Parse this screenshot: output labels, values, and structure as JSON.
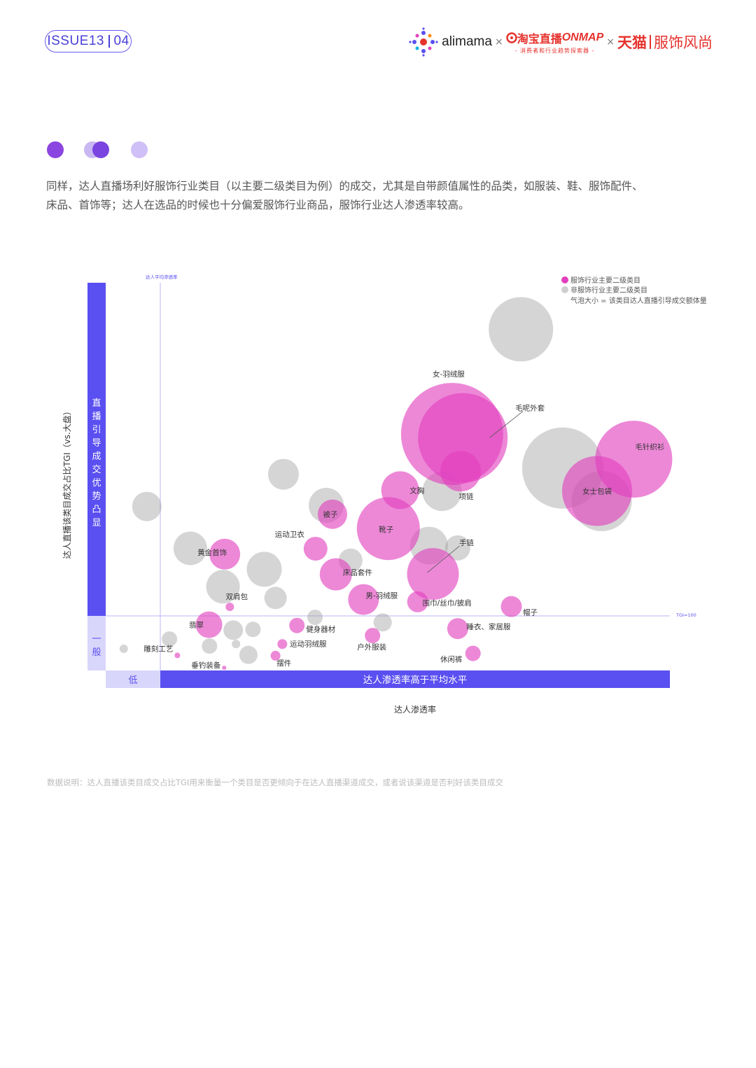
{
  "header": {
    "issue": "ISSUE13",
    "page": "04",
    "brands": {
      "alimama": "alimama",
      "times": "×",
      "taobao_live": "淘宝直播",
      "onmap": "ONMAP",
      "onmap_sub": "- 消费者和行业趋势探索器 -",
      "tmall": "天猫",
      "fashion": "服饰风尚"
    }
  },
  "intro": {
    "line1": "同样，达人直播场利好服饰行业类目（以主要二级类目为例）的成交，尤其是自带颜值属性的品类，如服装、鞋、服饰配件、",
    "line2": "床品、首饰等；达人在选品的时候也十分偏爱服饰行业商品，服饰行业达人渗透率较高。"
  },
  "chart_data": {
    "type": "scatter",
    "subtype": "bubble",
    "xlabel": "达人渗透率",
    "ylabel": "达人直播该类目成交占比TGI（vs.大盘）",
    "x_low_label": "低",
    "x_high_label": "达人渗透率高于平均水平",
    "y_high_label": "直播引导成交优势凸显",
    "y_low_label": "一般",
    "avg_line_label": "达人平均渗透率",
    "tgi_line_label": "TGI=100",
    "xlim": [
      0,
      100
    ],
    "ylim": [
      0,
      100
    ],
    "avg_x": 10.4,
    "tgi_y": 15.3,
    "legend": {
      "fashion": "服饰行业主要二级类目",
      "other": "非服饰行业主要二级类目",
      "size_note": "气泡大小 = 该类目达人直播引导成交额体量",
      "placement": "top-right"
    },
    "colors": {
      "fashion": "#e23fbe",
      "other": "#9a9a9a",
      "axis": "#5a4ff0",
      "axis_light": "#d9d6fb"
    },
    "points": [
      {
        "name": "",
        "group": "other",
        "x": 73.6,
        "y": 88.0,
        "size": 46
      },
      {
        "name": "",
        "group": "other",
        "x": 81.0,
        "y": 52.2,
        "size": 58
      },
      {
        "name": "",
        "group": "other",
        "x": 87.9,
        "y": 43.7,
        "size": 43
      },
      {
        "name": "",
        "group": "other",
        "x": 59.6,
        "y": 46.2,
        "size": 28
      },
      {
        "name": "",
        "group": "other",
        "x": 39.1,
        "y": 42.6,
        "size": 25
      },
      {
        "name": "",
        "group": "other",
        "x": 31.5,
        "y": 50.6,
        "size": 22
      },
      {
        "name": "",
        "group": "other",
        "x": 7.3,
        "y": 42.3,
        "size": 21
      },
      {
        "name": "",
        "group": "other",
        "x": 20.8,
        "y": 21.6,
        "size": 24
      },
      {
        "name": "",
        "group": "other",
        "x": 15.0,
        "y": 31.5,
        "size": 24
      },
      {
        "name": "",
        "group": "other",
        "x": 28.1,
        "y": 26.1,
        "size": 25
      },
      {
        "name": "",
        "group": "other",
        "x": 57.3,
        "y": 32.2,
        "size": 27
      },
      {
        "name": "",
        "group": "other",
        "x": 43.4,
        "y": 28.4,
        "size": 17
      },
      {
        "name": "",
        "group": "other",
        "x": 62.4,
        "y": 31.6,
        "size": 18
      },
      {
        "name": "",
        "group": "other",
        "x": 30.1,
        "y": 18.7,
        "size": 16
      },
      {
        "name": "",
        "group": "other",
        "x": 37.1,
        "y": 13.7,
        "size": 11
      },
      {
        "name": "",
        "group": "other",
        "x": 49.1,
        "y": 12.4,
        "size": 13
      },
      {
        "name": "",
        "group": "other",
        "x": 26.1,
        "y": 10.6,
        "size": 11
      },
      {
        "name": "",
        "group": "other",
        "x": 22.6,
        "y": 10.4,
        "size": 14
      },
      {
        "name": "",
        "group": "other",
        "x": 11.3,
        "y": 8.1,
        "size": 11
      },
      {
        "name": "",
        "group": "other",
        "x": 18.4,
        "y": 6.3,
        "size": 11
      },
      {
        "name": "",
        "group": "other",
        "x": 25.3,
        "y": 4.0,
        "size": 13
      },
      {
        "name": "",
        "group": "other",
        "x": 23.1,
        "y": 6.8,
        "size": 6
      },
      {
        "name": "",
        "group": "other",
        "x": 3.2,
        "y": 5.6,
        "size": 6
      },
      {
        "name": "女-羽绒服",
        "group": "fashion",
        "x": 61.4,
        "y": 61.0,
        "size": 73
      },
      {
        "name": "毛呢外套",
        "group": "fashion",
        "x": 63.3,
        "y": 60.0,
        "size": 64
      },
      {
        "name": "毛针织衫",
        "group": "fashion",
        "x": 93.6,
        "y": 54.5,
        "size": 55
      },
      {
        "name": "女士包袋",
        "group": "fashion",
        "x": 87.1,
        "y": 46.3,
        "size": 50
      },
      {
        "name": "靴子",
        "group": "fashion",
        "x": 50.1,
        "y": 36.6,
        "size": 45
      },
      {
        "name": "手链",
        "group": "fashion",
        "x": 58.0,
        "y": 24.9,
        "size": 37
      },
      {
        "name": "项链",
        "group": "fashion",
        "x": 62.9,
        "y": 51.4,
        "size": 29
      },
      {
        "name": "文胸",
        "group": "fashion",
        "x": 52.2,
        "y": 46.5,
        "size": 27
      },
      {
        "name": "被子",
        "group": "fashion",
        "x": 40.2,
        "y": 40.3,
        "size": 21
      },
      {
        "name": "床品套件",
        "group": "fashion",
        "x": 40.8,
        "y": 24.8,
        "size": 23
      },
      {
        "name": "男-羽绒服",
        "group": "fashion",
        "x": 45.7,
        "y": 18.3,
        "size": 22
      },
      {
        "name": "运动卫衣",
        "group": "fashion",
        "x": 37.2,
        "y": 31.4,
        "size": 17
      },
      {
        "name": "黄金首饰",
        "group": "fashion",
        "x": 21.1,
        "y": 30.0,
        "size": 22
      },
      {
        "name": "翡翠",
        "group": "fashion",
        "x": 18.3,
        "y": 11.8,
        "size": 19
      },
      {
        "name": "围巾/丝巾/披肩",
        "group": "fashion",
        "x": 55.3,
        "y": 17.7,
        "size": 15
      },
      {
        "name": "帽子",
        "group": "fashion",
        "x": 71.9,
        "y": 16.5,
        "size": 15
      },
      {
        "name": "睡衣、家居服",
        "group": "fashion",
        "x": 62.4,
        "y": 10.8,
        "size": 15
      },
      {
        "name": "健身器材",
        "group": "fashion",
        "x": 33.9,
        "y": 11.6,
        "size": 11
      },
      {
        "name": "户外服装",
        "group": "fashion",
        "x": 47.3,
        "y": 9.0,
        "size": 11
      },
      {
        "name": "休闲裤",
        "group": "fashion",
        "x": 65.1,
        "y": 4.4,
        "size": 11
      },
      {
        "name": "运动羽绒服",
        "group": "fashion",
        "x": 31.3,
        "y": 6.8,
        "size": 7
      },
      {
        "name": "双肩包",
        "group": "fashion",
        "x": 22.0,
        "y": 16.4,
        "size": 6
      },
      {
        "name": "摆件",
        "group": "fashion",
        "x": 30.1,
        "y": 3.8,
        "size": 7
      },
      {
        "name": "雕刻工艺",
        "group": "fashion",
        "x": 12.7,
        "y": 3.9,
        "size": 4
      },
      {
        "name": "垂钓装备",
        "group": "fashion",
        "x": 21.0,
        "y": 0.7,
        "size": 3
      }
    ]
  },
  "footnote": "数据说明：达人直播该类目成交占比TGI用来衡量一个类目是否更倾向于在达人直播渠道成交，或者说该渠道是否利好该类目成交"
}
